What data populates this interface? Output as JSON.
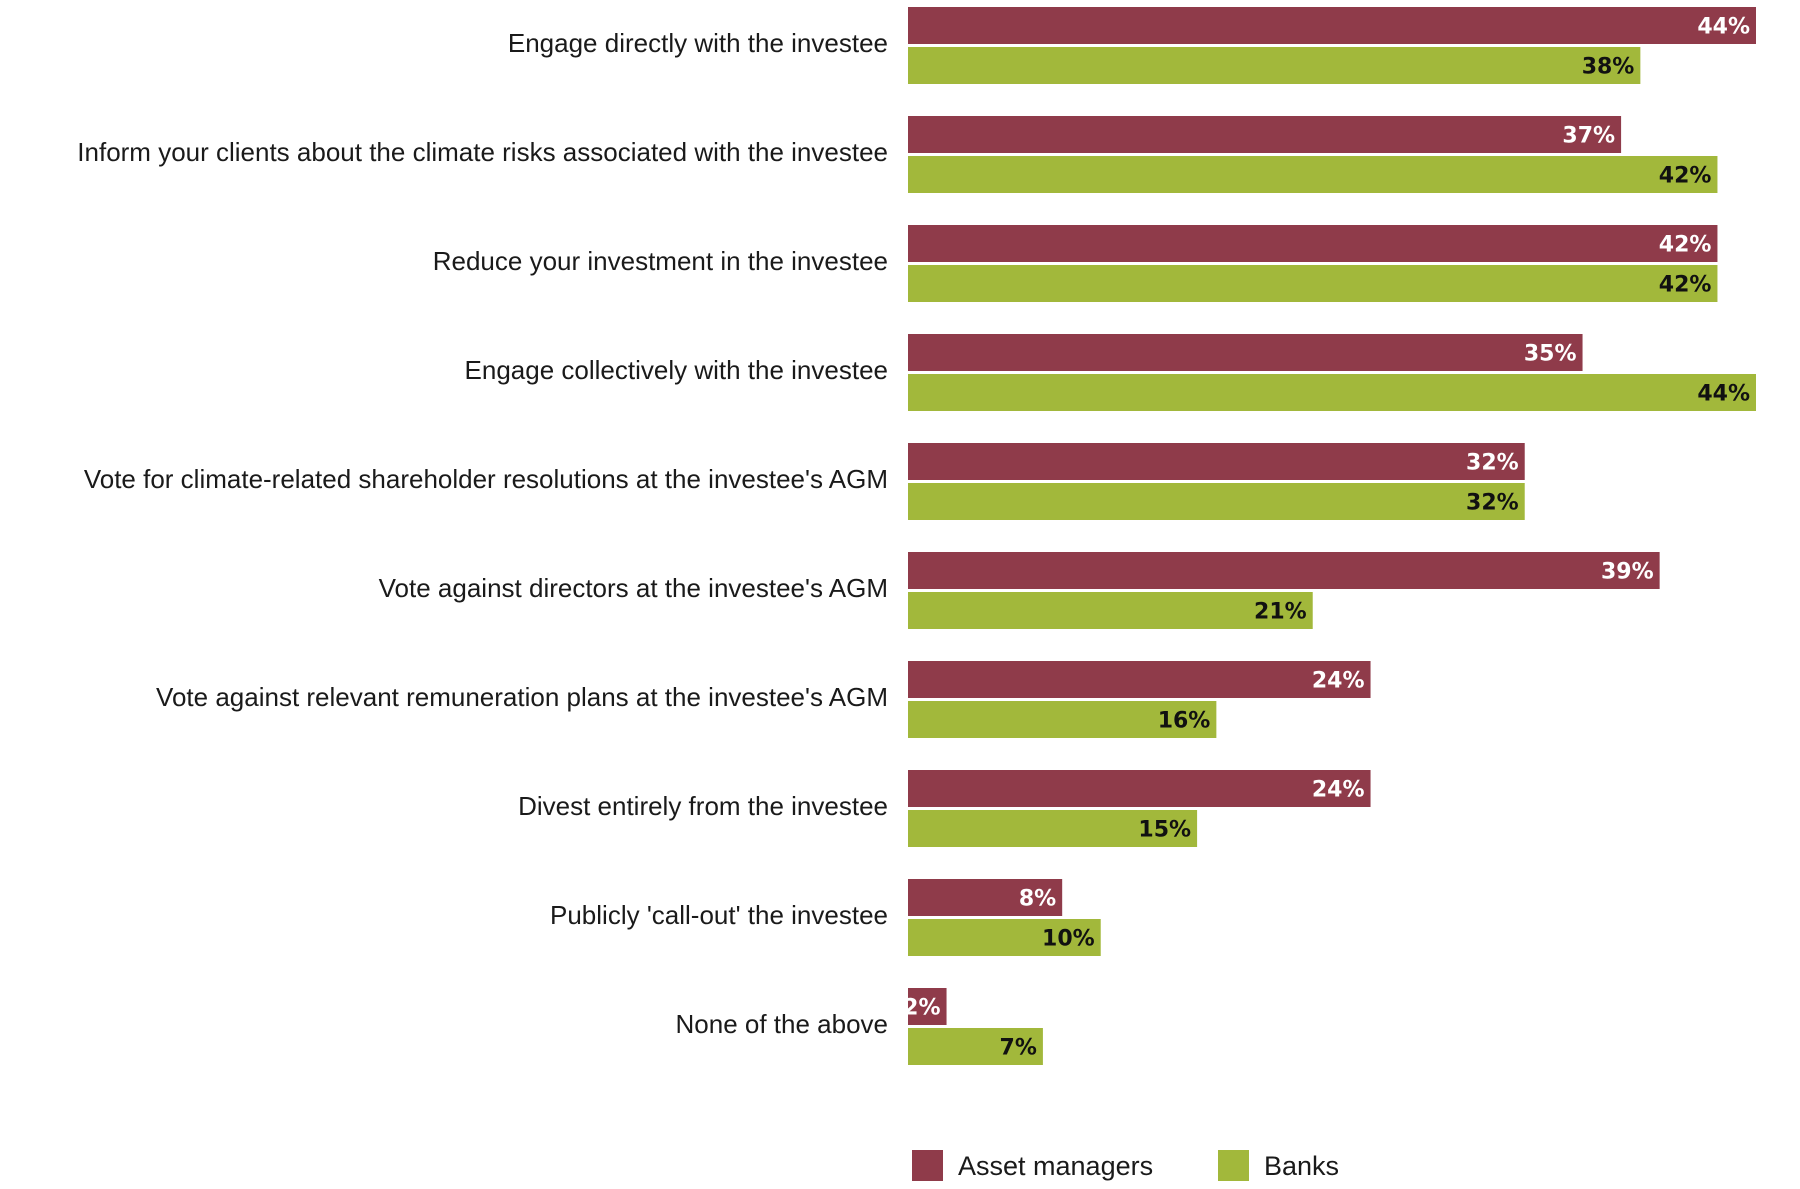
{
  "chart_data": {
    "type": "bar",
    "orientation": "horizontal",
    "categories": [
      "Engage directly with the investee",
      "Inform your clients about the climate risks associated with the investee",
      "Reduce your investment in the investee",
      "Engage collectively with the investee",
      "Vote for climate-related shareholder resolutions at the investee's AGM",
      "Vote against directors at the investee's AGM",
      "Vote against relevant remuneration plans at the investee's AGM",
      "Divest entirely from the investee",
      "Publicly 'call-out' the investee",
      "None of the above"
    ],
    "series": [
      {
        "name": "Asset managers",
        "color": "#8f3b4a",
        "label_color": "#ffffff",
        "values": [
          44,
          37,
          42,
          35,
          32,
          39,
          24,
          24,
          8,
          2
        ],
        "labels": [
          "44%",
          "37%",
          "42%",
          "35%",
          "32%",
          "39%",
          "24%",
          "24%",
          "8%",
          "2%"
        ]
      },
      {
        "name": "Banks",
        "color": "#a2b83b",
        "label_color": "#111111",
        "values": [
          38,
          42,
          42,
          44,
          32,
          21,
          16,
          15,
          10,
          7
        ],
        "labels": [
          "38%",
          "42%",
          "42%",
          "44%",
          "32%",
          "21%",
          "16%",
          "15%",
          "10%",
          "7%"
        ]
      }
    ],
    "unit": "%",
    "xlim": [
      0,
      44
    ],
    "grid": false,
    "legend": "bottom"
  }
}
